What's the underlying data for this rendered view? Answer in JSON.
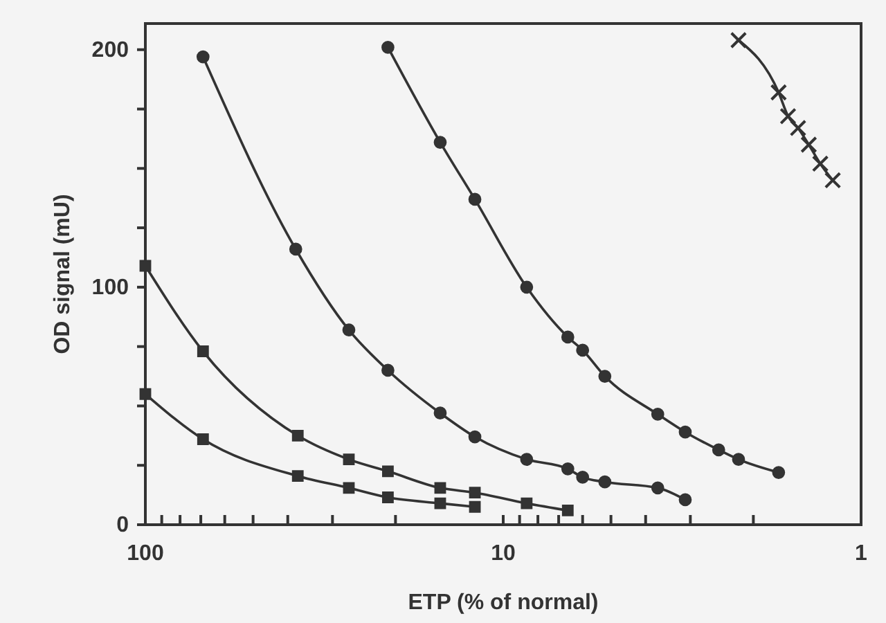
{
  "chart_data": {
    "type": "line",
    "xlabel": "ETP (% of normal)",
    "ylabel": "OD signal (mU)",
    "log": "x",
    "grid": false,
    "line_style": "solid",
    "xlim": [
      100,
      1
    ],
    "xticks": [
      100,
      {
        "value": 90,
        "label": null
      },
      {
        "value": 80,
        "label": null
      },
      {
        "value": 70,
        "label": null
      },
      {
        "value": 60,
        "label": null
      },
      {
        "value": 50,
        "label": null
      },
      {
        "value": 40,
        "label": null
      },
      {
        "value": 30,
        "label": null
      },
      {
        "value": 20,
        "label": null
      },
      10,
      {
        "value": 9,
        "label": null
      },
      {
        "value": 8,
        "label": null
      },
      {
        "value": 7,
        "label": null
      },
      {
        "value": 6,
        "label": null
      },
      {
        "value": 5,
        "label": null
      },
      {
        "value": 4,
        "label": null
      },
      {
        "value": 3,
        "label": null
      },
      {
        "value": 2,
        "label": null
      },
      1
    ],
    "ylim": [
      0,
      211
    ],
    "yticks": [
      0,
      {
        "value": 25,
        "label": null
      },
      {
        "value": 50,
        "label": null
      },
      {
        "value": 75,
        "label": null
      },
      100,
      {
        "value": 125,
        "label": null
      },
      {
        "value": 150,
        "label": null
      },
      {
        "value": 175,
        "label": null
      },
      200
    ],
    "series": [
      {
        "color": "#333333",
        "marker": "square",
        "x": [
          100,
          69,
          37.5,
          27,
          21,
          15,
          12
        ],
        "values": [
          55,
          36,
          20.5,
          15.5,
          11.5,
          9,
          7.5
        ]
      },
      {
        "color": "#333333",
        "marker": "square",
        "x": [
          100,
          69,
          37.5,
          27,
          21,
          15,
          12,
          8.6,
          6.6
        ],
        "values": [
          109,
          73,
          37.5,
          27.5,
          22.5,
          15.5,
          13.5,
          9,
          6
        ]
      },
      {
        "color": "#333333",
        "marker": "circle",
        "x": [
          69,
          38,
          27,
          21,
          15,
          12,
          8.6,
          6.6,
          6,
          5.2,
          3.7,
          3.1
        ],
        "values": [
          197,
          116,
          82,
          65,
          47,
          37,
          27.5,
          23.5,
          20,
          18,
          15.5,
          10.5
        ]
      },
      {
        "color": "#333333",
        "marker": "circle",
        "x": [
          21,
          15,
          12,
          8.6,
          6.6,
          6,
          5.2,
          3.7,
          3.1,
          2.5,
          2.2,
          1.7
        ],
        "values": [
          201,
          161,
          137,
          100,
          79,
          73.5,
          62.5,
          46.5,
          39,
          31.5,
          27.5,
          22
        ]
      },
      {
        "color": "#333333",
        "marker": "cross",
        "x": [
          2.2,
          1.7,
          1.6,
          1.5,
          1.4,
          1.3,
          1.2
        ],
        "values": [
          204,
          182,
          172,
          167,
          160,
          152,
          145
        ]
      }
    ]
  }
}
